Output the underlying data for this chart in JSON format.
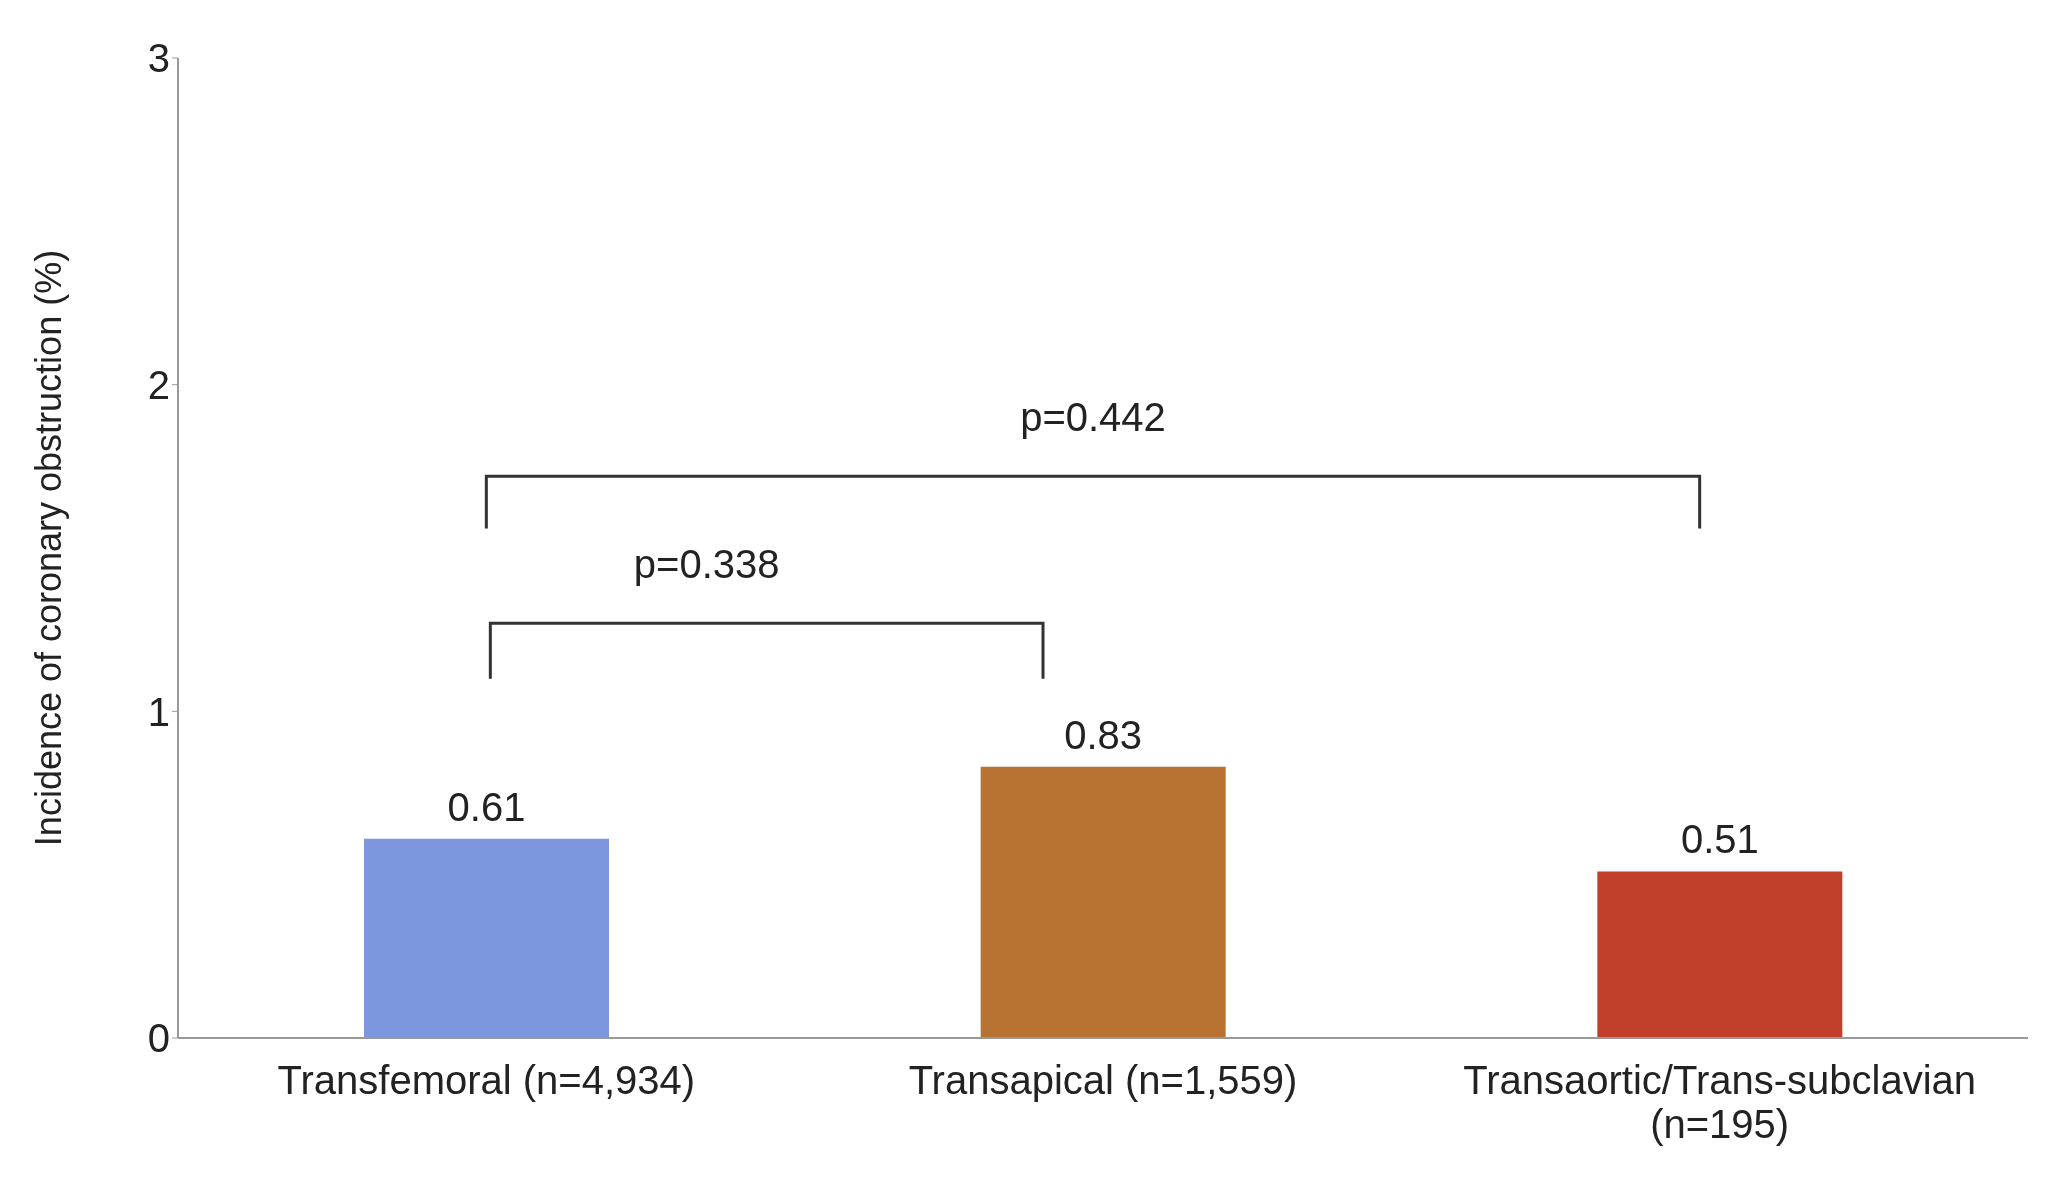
{
  "chart_data": {
    "type": "bar",
    "ylabel": "Incidence of coronary obstruction (%)",
    "categories": [
      "Transfemoral (n=4,934)",
      "Transapical (n=1,559)",
      "Transaortic/Trans-subclavian (n=195)"
    ],
    "values": [
      0.61,
      0.83,
      0.51
    ],
    "colors": [
      "#7d97df",
      "#b87333",
      "#c0402b"
    ],
    "ylim": [
      0,
      3
    ],
    "yticks": [
      0,
      1,
      2,
      3
    ],
    "data_labels": true,
    "annotations": [
      "p=0.442",
      "p=0.338"
    ]
  }
}
